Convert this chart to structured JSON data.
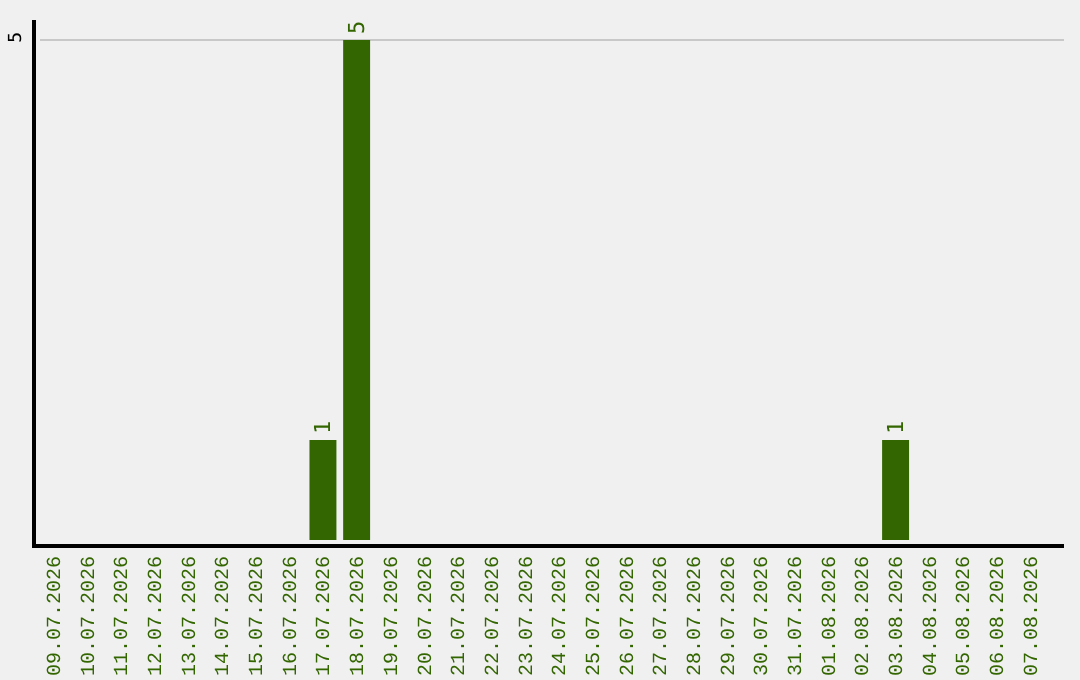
{
  "chart_data": {
    "type": "bar",
    "categories": [
      "09.07.2026",
      "10.07.2026",
      "11.07.2026",
      "12.07.2026",
      "13.07.2026",
      "14.07.2026",
      "15.07.2026",
      "16.07.2026",
      "17.07.2026",
      "18.07.2026",
      "19.07.2026",
      "20.07.2026",
      "21.07.2026",
      "22.07.2026",
      "23.07.2026",
      "24.07.2026",
      "25.07.2026",
      "26.07.2026",
      "27.07.2026",
      "28.07.2026",
      "29.07.2026",
      "30.07.2026",
      "31.07.2026",
      "01.08.2026",
      "02.08.2026",
      "03.08.2026",
      "04.08.2026",
      "05.08.2026",
      "06.08.2026",
      "07.08.2026"
    ],
    "series": [
      {
        "color": "#336600",
        "values": [
          0,
          0,
          0,
          0,
          0,
          0,
          0,
          0,
          1,
          5,
          0,
          0,
          0,
          0,
          0,
          0,
          0,
          0,
          0,
          0,
          0,
          0,
          0,
          0,
          0,
          1,
          0,
          0,
          0,
          0
        ]
      }
    ],
    "value_labels": [
      null,
      null,
      null,
      null,
      null,
      null,
      null,
      null,
      "1",
      "5",
      null,
      null,
      null,
      null,
      null,
      null,
      null,
      null,
      null,
      null,
      null,
      null,
      null,
      null,
      null,
      "1",
      null,
      null,
      null,
      null
    ],
    "ylim": [
      0,
      5.2
    ],
    "yticks": [
      5
    ],
    "grid": "y"
  }
}
